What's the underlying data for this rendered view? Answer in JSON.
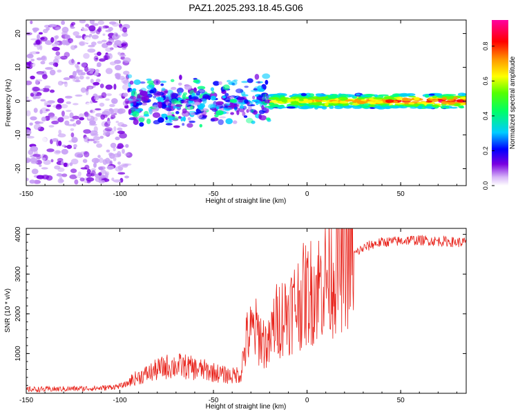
{
  "figure": {
    "title": "PAZ1.2025.293.18.45.G06"
  },
  "chart_data": [
    {
      "type": "heatmap",
      "title": "PAZ1.2025.293.18.45.G06",
      "xlabel": "Height of straight line (km)",
      "ylabel": "Frequency (Hz)",
      "xlim": [
        -150,
        85
      ],
      "ylim": [
        -25,
        24
      ],
      "x_ticks": [
        -150,
        -100,
        -50,
        0,
        50
      ],
      "y_ticks": [
        -20,
        -10,
        0,
        10,
        20
      ],
      "colorbar": {
        "label": "Normalized spectral amplitude",
        "range": [
          0,
          0.95
        ],
        "ticks": [
          0.0,
          0.2,
          0.4,
          0.6,
          0.8
        ],
        "tick_labels": [
          "0.0",
          "0.2",
          "0.4",
          "0.6",
          "0.8"
        ],
        "colormap": [
          "#ffffff",
          "#c8a0f5",
          "#7a00e0",
          "#0000ff",
          "#00ccff",
          "#00ff80",
          "#60ff00",
          "#ffff00",
          "#ff9900",
          "#ff0000",
          "#ff00a0"
        ]
      },
      "description_bands": [
        {
          "x_range": [
            -150,
            -95
          ],
          "freq_spread": 24,
          "amplitude": 0.15
        },
        {
          "x_range": [
            -95,
            -20
          ],
          "freq_spread": 8,
          "amplitude": 0.35
        },
        {
          "x_range": [
            -20,
            85
          ],
          "freq_spread": 2,
          "amplitude": 0.8
        }
      ],
      "grid": false
    },
    {
      "type": "line",
      "xlabel": "Height of straight line (km)",
      "ylabel": "SNR (10 * v/v)",
      "xlim": [
        -150,
        85
      ],
      "ylim": [
        0,
        4150
      ],
      "x_ticks": [
        -150,
        -100,
        -50,
        0,
        50
      ],
      "y_ticks": [
        1000,
        2000,
        3000,
        4000
      ],
      "series": [
        {
          "color": "#e8221a",
          "x": [
            -150,
            -140,
            -130,
            -120,
            -110,
            -100,
            -95,
            -90,
            -85,
            -80,
            -75,
            -70,
            -65,
            -60,
            -55,
            -50,
            -45,
            -40,
            -36,
            -34,
            -32,
            -30,
            -28,
            -26,
            -24,
            -22,
            -20,
            -18,
            -15,
            -12,
            -10,
            -8,
            -5,
            -2,
            0,
            3,
            6,
            10,
            13,
            16,
            20,
            25,
            30,
            35,
            40,
            45,
            50,
            55,
            60,
            65,
            70,
            75,
            80,
            85
          ],
          "values": [
            100,
            100,
            110,
            120,
            130,
            180,
            250,
            330,
            400,
            480,
            540,
            560,
            540,
            500,
            470,
            430,
            380,
            350,
            400,
            900,
            1400,
            1500,
            1600,
            1500,
            1350,
            1250,
            1200,
            1700,
            1900,
            2000,
            2100,
            2150,
            2300,
            2450,
            2500,
            2600,
            2700,
            2900,
            3000,
            3200,
            3350,
            3500,
            3650,
            3750,
            3800,
            3820,
            3830,
            3860,
            3850,
            3840,
            3830,
            3820,
            3800,
            3800
          ]
        }
      ],
      "grid": false
    }
  ]
}
